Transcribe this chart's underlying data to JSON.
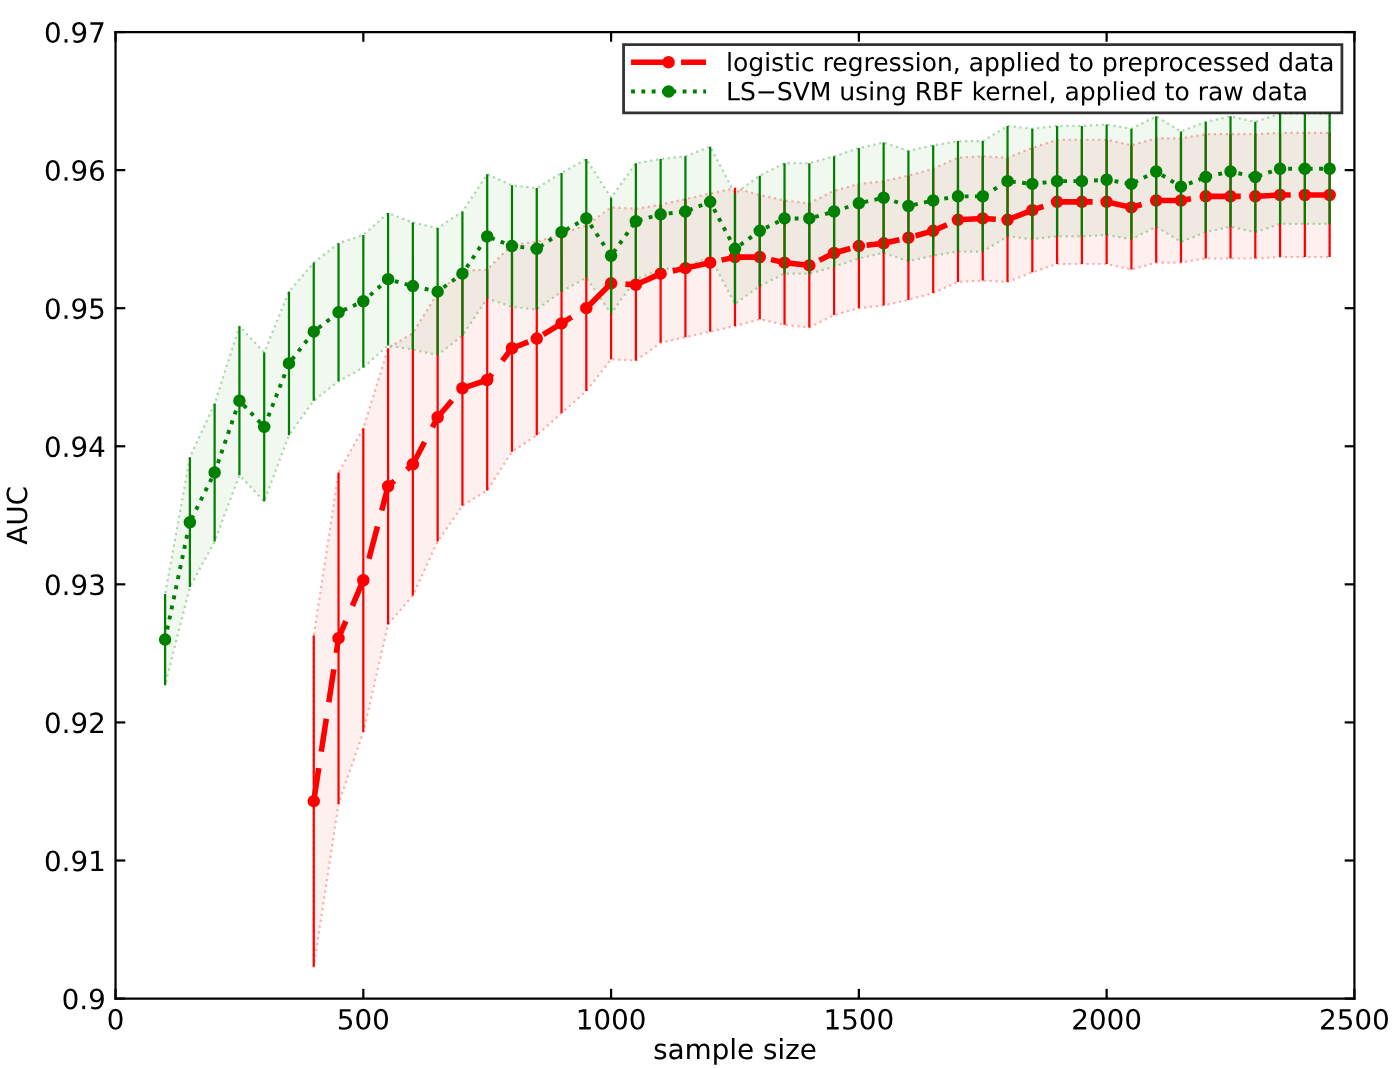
{
  "chart_data": {
    "type": "line",
    "xlabel": "sample size",
    "ylabel": "AUC",
    "xlim": [
      0,
      2500
    ],
    "xticks": [
      0,
      500,
      1000,
      1500,
      2000,
      2500
    ],
    "ylim": [
      0.9,
      0.97
    ],
    "yticks": [
      0.9,
      0.91,
      0.92,
      0.93,
      0.94,
      0.95,
      0.96,
      0.97
    ],
    "grid": false,
    "legend": "top right",
    "series": [
      {
        "name": "logistic regression, applied to preprocessed data",
        "color": "#ff0000",
        "line_style": "dashed",
        "marker": "circle",
        "x": [
          400,
          450,
          500,
          550,
          600,
          650,
          700,
          750,
          800,
          850,
          900,
          950,
          1000,
          1050,
          1100,
          1150,
          1200,
          1250,
          1300,
          1350,
          1400,
          1450,
          1500,
          1550,
          1600,
          1650,
          1700,
          1750,
          1800,
          1850,
          1900,
          1950,
          2000,
          2050,
          2100,
          2150,
          2200,
          2250,
          2300,
          2350,
          2400,
          2450
        ],
        "values": [
          0.9143,
          0.9261,
          0.9303,
          0.9371,
          0.9387,
          0.9421,
          0.9442,
          0.9448,
          0.9471,
          0.9478,
          0.9489,
          0.95,
          0.9518,
          0.9517,
          0.9525,
          0.9529,
          0.9533,
          0.9537,
          0.9537,
          0.9533,
          0.9531,
          0.954,
          0.9545,
          0.9547,
          0.9551,
          0.9556,
          0.9564,
          0.9565,
          0.9564,
          0.9571,
          0.9577,
          0.9577,
          0.9577,
          0.9573,
          0.9578,
          0.9578,
          0.9581,
          0.9581,
          0.9581,
          0.9582,
          0.9582,
          0.9582
        ],
        "errors": [
          0.012,
          0.012,
          0.011,
          0.01,
          0.0095,
          0.009,
          0.0085,
          0.008,
          0.0075,
          0.007,
          0.0065,
          0.006,
          0.0055,
          0.0055,
          0.005,
          0.005,
          0.005,
          0.005,
          0.0045,
          0.0045,
          0.0045,
          0.0045,
          0.0045,
          0.0045,
          0.0045,
          0.0045,
          0.0045,
          0.0045,
          0.0045,
          0.0045,
          0.0045,
          0.0045,
          0.0045,
          0.0045,
          0.0045,
          0.0045,
          0.0045,
          0.0045,
          0.0045,
          0.0045,
          0.0045,
          0.0045
        ],
        "lower": [
          0.9023,
          0.9141,
          0.9193,
          0.9271,
          0.9292,
          0.9331,
          0.9357,
          0.9368,
          0.9396,
          0.9408,
          0.9424,
          0.944,
          0.9463,
          0.9462,
          0.9475,
          0.9479,
          0.9483,
          0.9487,
          0.9492,
          0.9488,
          0.9486,
          0.9495,
          0.95,
          0.9502,
          0.9506,
          0.9511,
          0.9519,
          0.952,
          0.9519,
          0.9526,
          0.9532,
          0.9532,
          0.9532,
          0.9528,
          0.9533,
          0.9533,
          0.9536,
          0.9536,
          0.9536,
          0.9537,
          0.9537,
          0.9537
        ],
        "upper": [
          0.9263,
          0.9381,
          0.9413,
          0.9471,
          0.9482,
          0.9511,
          0.9527,
          0.9528,
          0.9546,
          0.9548,
          0.9554,
          0.956,
          0.9573,
          0.9572,
          0.9575,
          0.9579,
          0.9583,
          0.9587,
          0.9582,
          0.9578,
          0.9576,
          0.9585,
          0.959,
          0.9592,
          0.9596,
          0.9601,
          0.9609,
          0.961,
          0.9609,
          0.9616,
          0.9622,
          0.9622,
          0.9622,
          0.9618,
          0.9623,
          0.9623,
          0.9626,
          0.9626,
          0.9626,
          0.9627,
          0.9627,
          0.9627
        ]
      },
      {
        "name": "LS−SVM using RBF kernel, applied to raw data",
        "color": "#008000",
        "line_style": "dotted",
        "marker": "circle",
        "x": [
          100,
          150,
          200,
          250,
          300,
          350,
          400,
          450,
          500,
          550,
          600,
          650,
          700,
          750,
          800,
          850,
          900,
          950,
          1000,
          1050,
          1100,
          1150,
          1200,
          1250,
          1300,
          1350,
          1400,
          1450,
          1500,
          1550,
          1600,
          1650,
          1700,
          1750,
          1800,
          1850,
          1900,
          1950,
          2000,
          2050,
          2100,
          2150,
          2200,
          2250,
          2300,
          2350,
          2400,
          2450
        ],
        "values": [
          0.926,
          0.9345,
          0.9381,
          0.9433,
          0.9414,
          0.946,
          0.9483,
          0.9497,
          0.9505,
          0.9521,
          0.9516,
          0.9512,
          0.9525,
          0.9552,
          0.9545,
          0.9543,
          0.9555,
          0.9565,
          0.9538,
          0.9563,
          0.9568,
          0.957,
          0.9577,
          0.9543,
          0.9556,
          0.9565,
          0.9565,
          0.957,
          0.9576,
          0.958,
          0.9574,
          0.9578,
          0.9581,
          0.9581,
          0.9592,
          0.959,
          0.9592,
          0.9592,
          0.9593,
          0.959,
          0.9599,
          0.9588,
          0.9595,
          0.9599,
          0.9595,
          0.9601,
          0.9601,
          0.9601
        ],
        "errors": [
          0.0033,
          0.0047,
          0.005,
          0.0054,
          0.0054,
          0.0052,
          0.005,
          0.005,
          0.0048,
          0.0048,
          0.0046,
          0.0046,
          0.0045,
          0.0045,
          0.0044,
          0.0044,
          0.0043,
          0.0043,
          0.0042,
          0.0042,
          0.004,
          0.004,
          0.004,
          0.004,
          0.004,
          0.004,
          0.004,
          0.004,
          0.004,
          0.004,
          0.004,
          0.004,
          0.004,
          0.004,
          0.004,
          0.004,
          0.004,
          0.004,
          0.004,
          0.004,
          0.004,
          0.004,
          0.004,
          0.004,
          0.004,
          0.004,
          0.004,
          0.004
        ],
        "lower": [
          0.9227,
          0.9298,
          0.9331,
          0.9379,
          0.936,
          0.9408,
          0.9433,
          0.9447,
          0.9457,
          0.9473,
          0.947,
          0.9466,
          0.948,
          0.9507,
          0.9501,
          0.9499,
          0.9512,
          0.9522,
          0.9496,
          0.9521,
          0.9528,
          0.953,
          0.9537,
          0.9503,
          0.9516,
          0.9525,
          0.9525,
          0.953,
          0.9536,
          0.954,
          0.9534,
          0.9538,
          0.9541,
          0.9541,
          0.9552,
          0.955,
          0.9552,
          0.9552,
          0.9553,
          0.955,
          0.9559,
          0.9548,
          0.9555,
          0.9559,
          0.9555,
          0.9561,
          0.9561,
          0.9561
        ],
        "upper": [
          0.9293,
          0.9392,
          0.9431,
          0.9487,
          0.9468,
          0.9512,
          0.9533,
          0.9547,
          0.9553,
          0.9569,
          0.9562,
          0.9558,
          0.957,
          0.9597,
          0.9589,
          0.9587,
          0.9598,
          0.9608,
          0.958,
          0.9605,
          0.9608,
          0.961,
          0.9617,
          0.9583,
          0.9596,
          0.9605,
          0.9605,
          0.961,
          0.9616,
          0.962,
          0.9614,
          0.9618,
          0.9621,
          0.9621,
          0.9632,
          0.963,
          0.9632,
          0.9632,
          0.9633,
          0.963,
          0.9639,
          0.9628,
          0.9635,
          0.9639,
          0.9635,
          0.9641,
          0.9641,
          0.9641
        ]
      }
    ]
  }
}
